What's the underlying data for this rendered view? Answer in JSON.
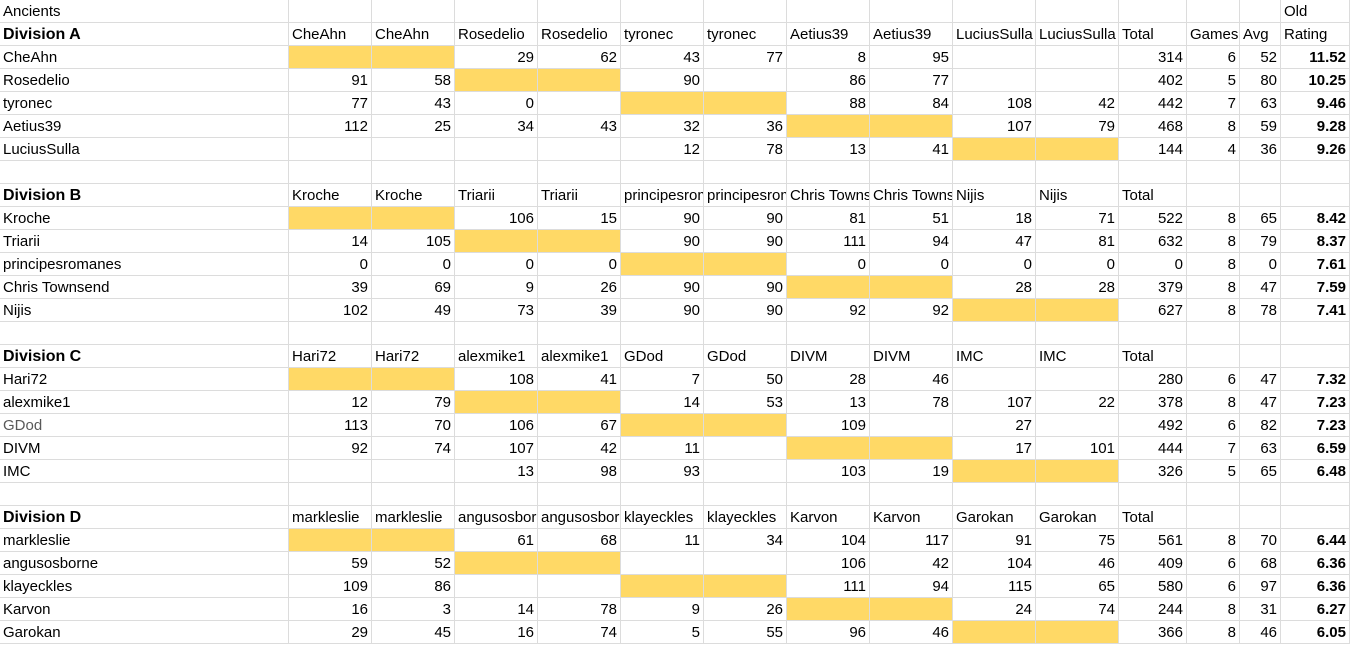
{
  "sheet": {
    "title": "Ancients",
    "old_label": "Old",
    "total_label": "Total",
    "games_label": "Games",
    "avg_label": "Avg",
    "rating_label": "Rating"
  },
  "divisions": [
    {
      "name": "Division A",
      "columns": [
        "CheAhn",
        "CheAhn",
        "Rosedelio",
        "Rosedelio",
        "tyronec",
        "tyronec",
        "Aetius39",
        "Aetius39",
        "LuciusSulla",
        "LuciusSulla"
      ],
      "rows": [
        {
          "player": "CheAhn",
          "cells": [
            "",
            "",
            "29",
            "62",
            "43",
            "77",
            "8",
            "95",
            "",
            ""
          ],
          "total": "314",
          "games": "6",
          "avg": "52",
          "rating": "11.52"
        },
        {
          "player": "Rosedelio",
          "cells": [
            "91",
            "58",
            "",
            "",
            "90",
            "",
            "86",
            "77",
            "",
            ""
          ],
          "total": "402",
          "games": "5",
          "avg": "80",
          "rating": "10.25"
        },
        {
          "player": "tyronec",
          "cells": [
            "77",
            "43",
            "0",
            "",
            "",
            "",
            "88",
            "84",
            "108",
            "42"
          ],
          "total": "442",
          "games": "7",
          "avg": "63",
          "rating": "9.46"
        },
        {
          "player": "Aetius39",
          "cells": [
            "112",
            "25",
            "34",
            "43",
            "32",
            "36",
            "",
            "",
            "107",
            "79"
          ],
          "total": "468",
          "games": "8",
          "avg": "59",
          "rating": "9.28"
        },
        {
          "player": "LuciusSulla",
          "cells": [
            "",
            "",
            "",
            "",
            "12",
            "78",
            "13",
            "41",
            "",
            ""
          ],
          "total": "144",
          "games": "4",
          "avg": "36",
          "rating": "9.26"
        }
      ]
    },
    {
      "name": "Division B",
      "columns": [
        "Kroche",
        "Kroche",
        "Triarii",
        "Triarii",
        "principesromanes",
        "principesromanes",
        "Chris Townsend",
        "Chris Townsend",
        "Nijis",
        "Nijis"
      ],
      "rows": [
        {
          "player": "Kroche",
          "cells": [
            "",
            "",
            "106",
            "15",
            "90",
            "90",
            "81",
            "51",
            "18",
            "71"
          ],
          "total": "522",
          "games": "8",
          "avg": "65",
          "rating": "8.42"
        },
        {
          "player": "Triarii",
          "cells": [
            "14",
            "105",
            "",
            "",
            "90",
            "90",
            "111",
            "94",
            "47",
            "81"
          ],
          "total": "632",
          "games": "8",
          "avg": "79",
          "rating": "8.37"
        },
        {
          "player": "principesromanes",
          "cells": [
            "0",
            "0",
            "0",
            "0",
            "",
            "",
            "0",
            "0",
            "0",
            "0"
          ],
          "total": "0",
          "games": "8",
          "avg": "0",
          "rating": "7.61"
        },
        {
          "player": "Chris Townsend",
          "cells": [
            "39",
            "69",
            "9",
            "26",
            "90",
            "90",
            "",
            "",
            "28",
            "28"
          ],
          "total": "379",
          "games": "8",
          "avg": "47",
          "rating": "7.59"
        },
        {
          "player": "Nijis",
          "cells": [
            "102",
            "49",
            "73",
            "39",
            "90",
            "90",
            "92",
            "92",
            "",
            ""
          ],
          "total": "627",
          "games": "8",
          "avg": "78",
          "rating": "7.41"
        }
      ]
    },
    {
      "name": "Division C",
      "columns": [
        "Hari72",
        "Hari72",
        "alexmike1",
        "alexmike1",
        "GDod",
        "GDod",
        "DIVM",
        "DIVM",
        "IMC",
        "IMC"
      ],
      "rows": [
        {
          "player": "Hari72",
          "cells": [
            "",
            "",
            "108",
            "41",
            "7",
            "50",
            "28",
            "46",
            "",
            ""
          ],
          "total": "280",
          "games": "6",
          "avg": "47",
          "rating": "7.32"
        },
        {
          "player": "alexmike1",
          "cells": [
            "12",
            "79",
            "",
            "",
            "14",
            "53",
            "13",
            "78",
            "107",
            "22"
          ],
          "total": "378",
          "games": "8",
          "avg": "47",
          "rating": "7.23"
        },
        {
          "player": "GDod",
          "cells": [
            "113",
            "70",
            "106",
            "67",
            "",
            "",
            "109",
            "",
            "27",
            ""
          ],
          "total": "492",
          "games": "6",
          "avg": "82",
          "rating": "7.23"
        },
        {
          "player": "DIVM",
          "cells": [
            "92",
            "74",
            "107",
            "42",
            "11",
            "",
            "",
            "",
            "17",
            "101"
          ],
          "total": "444",
          "games": "7",
          "avg": "63",
          "rating": "6.59"
        },
        {
          "player": "IMC",
          "cells": [
            "",
            "",
            "13",
            "98",
            "93",
            "",
            "103",
            "19",
            "",
            ""
          ],
          "total": "326",
          "games": "5",
          "avg": "65",
          "rating": "6.48"
        }
      ]
    },
    {
      "name": "Division D",
      "columns": [
        "markleslie",
        "markleslie",
        "angusosborne",
        "angusosborne",
        "klayeckles",
        "klayeckles",
        "Karvon",
        "Karvon",
        "Garokan",
        "Garokan"
      ],
      "rows": [
        {
          "player": "markleslie",
          "cells": [
            "",
            "",
            "61",
            "68",
            "11",
            "34",
            "104",
            "117",
            "91",
            "75"
          ],
          "total": "561",
          "games": "8",
          "avg": "70",
          "rating": "6.44"
        },
        {
          "player": "angusosborne",
          "cells": [
            "59",
            "52",
            "",
            "",
            "",
            "",
            "106",
            "42",
            "104",
            "46"
          ],
          "total": "409",
          "games": "6",
          "avg": "68",
          "rating": "6.36"
        },
        {
          "player": "klayeckles",
          "cells": [
            "109",
            "86",
            "",
            "",
            "",
            "",
            "111",
            "94",
            "115",
            "65"
          ],
          "total": "580",
          "games": "6",
          "avg": "97",
          "rating": "6.36"
        },
        {
          "player": "Karvon",
          "cells": [
            "16",
            "3",
            "14",
            "78",
            "9",
            "26",
            "",
            "",
            "24",
            "74"
          ],
          "total": "244",
          "games": "8",
          "avg": "31",
          "rating": "6.27"
        },
        {
          "player": "Garokan",
          "cells": [
            "29",
            "45",
            "16",
            "74",
            "5",
            "55",
            "96",
            "46",
            "",
            ""
          ],
          "total": "366",
          "games": "8",
          "avg": "46",
          "rating": "6.05"
        }
      ]
    }
  ],
  "colors": {
    "highlight": "#ffd966",
    "gridline": "#dcdcdc"
  }
}
